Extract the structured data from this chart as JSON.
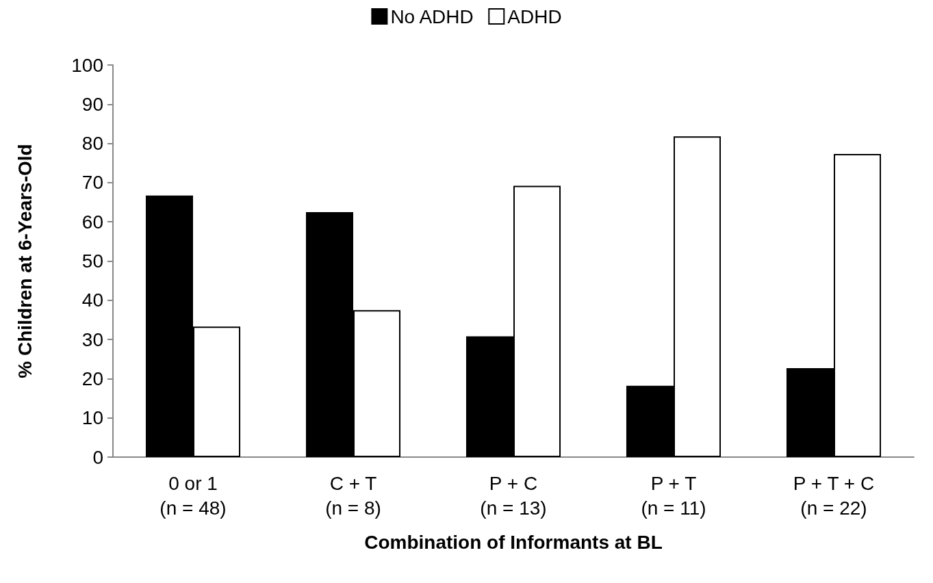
{
  "chart_data": {
    "type": "bar",
    "xlabel": "Combination of Informants at BL",
    "ylabel": "% Children at 6-Years-Old",
    "categories": [
      "0 or 1\n(n = 48)",
      "C + T\n(n = 8)",
      "P + C\n(n = 13)",
      "P + T\n(n = 11)",
      "P + T + C\n(n = 22)"
    ],
    "series": [
      {
        "name": "No ADHD",
        "color": "#000000",
        "values": [
          66.7,
          62.5,
          30.8,
          18.2,
          22.7
        ]
      },
      {
        "name": "ADHD",
        "color": "#ffffff",
        "values": [
          33.3,
          37.5,
          69.2,
          81.8,
          77.3
        ]
      }
    ],
    "ylim": [
      0,
      100
    ],
    "yticks": [
      0,
      10,
      20,
      30,
      40,
      50,
      60,
      70,
      80,
      90,
      100
    ],
    "grid": false,
    "legend": "top"
  }
}
